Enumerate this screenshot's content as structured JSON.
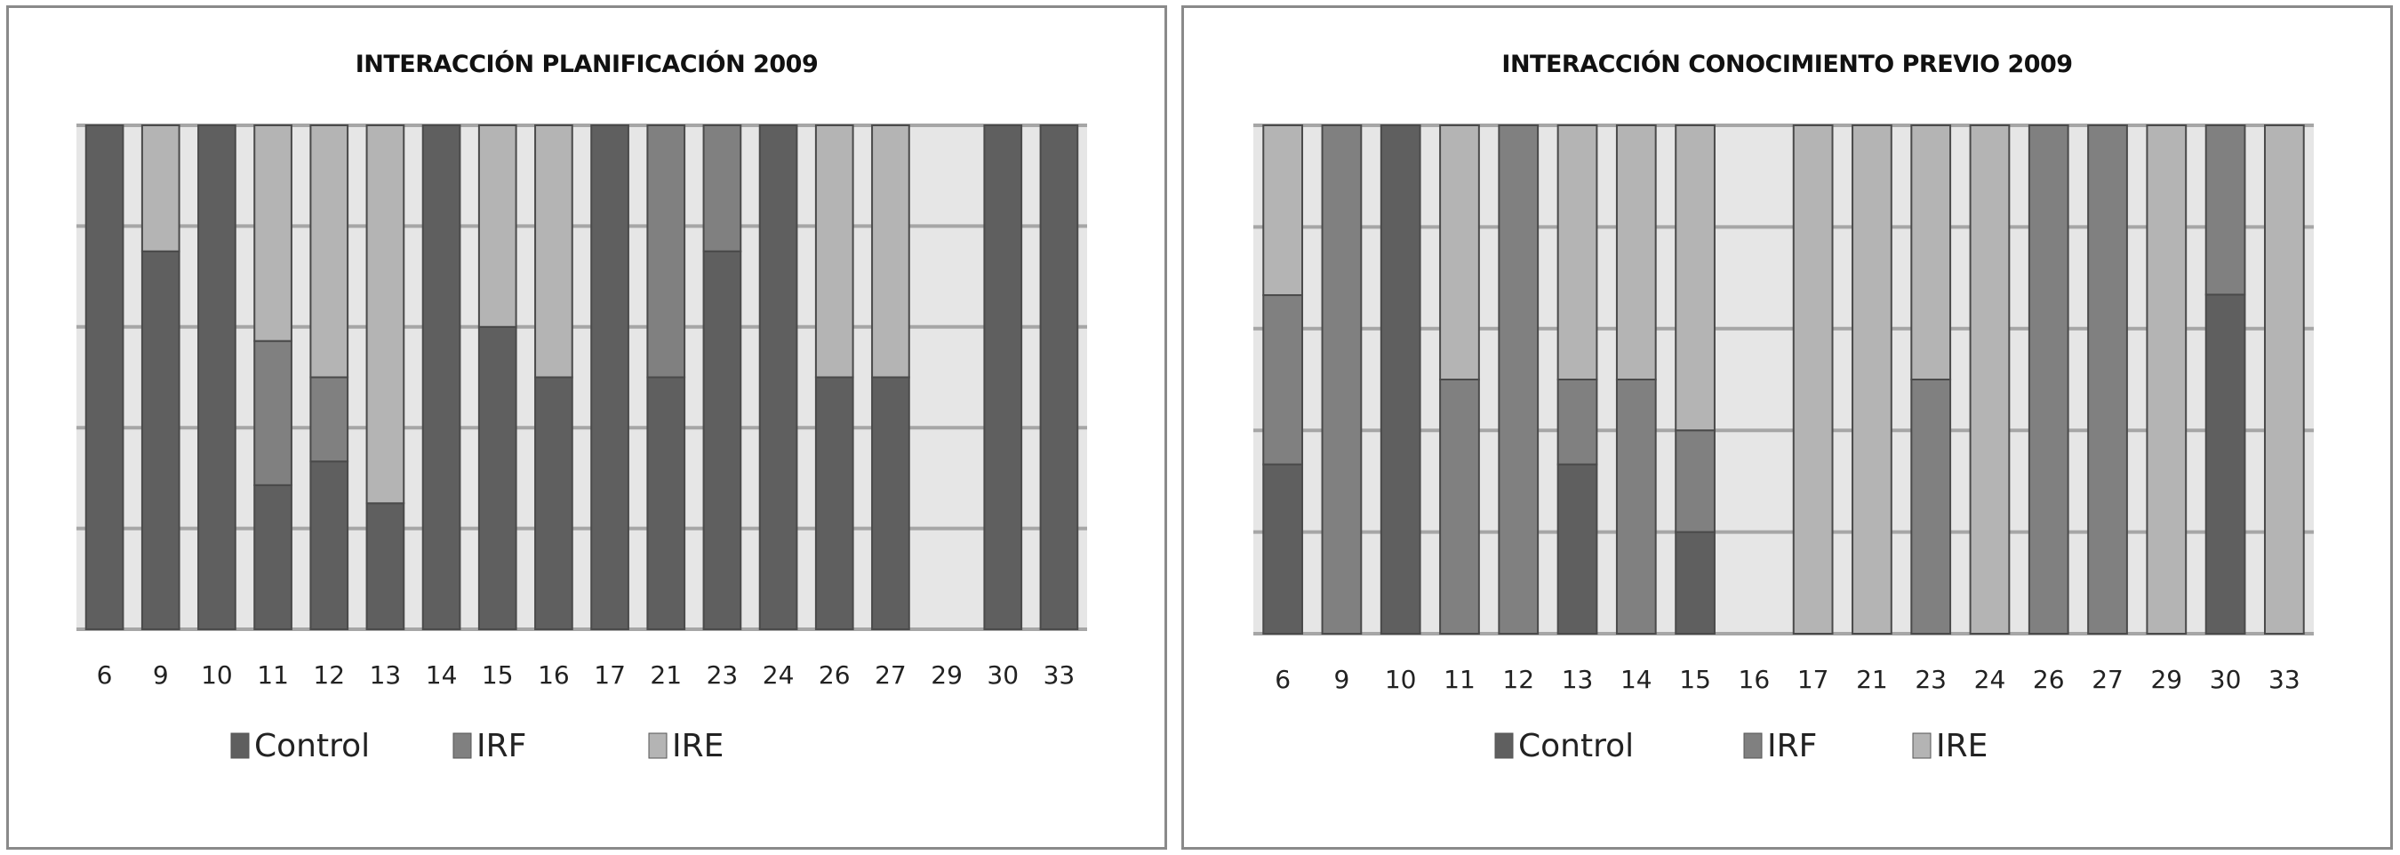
{
  "chart_data": [
    {
      "type": "bar",
      "stacked": "percent",
      "title": "INTERACCIÓN PLANIFICACIÓN 2009",
      "xlabel": "",
      "ylabel": "",
      "ylim": [
        0,
        1
      ],
      "grid": true,
      "legend_position": "bottom",
      "categories": [
        "6",
        "9",
        "10",
        "11",
        "12",
        "13",
        "14",
        "15",
        "16",
        "17",
        "21",
        "23",
        "24",
        "26",
        "27",
        "29",
        "30",
        "33"
      ],
      "series": [
        {
          "name": "Control",
          "color": "#5f5f5f",
          "values": [
            1,
            0.75,
            1,
            0.286,
            0.333,
            0.25,
            1,
            0.6,
            0.5,
            1,
            0.5,
            0.75,
            1,
            0.5,
            0.5,
            0,
            1,
            1
          ]
        },
        {
          "name": "IRF",
          "color": "#808080",
          "values": [
            0,
            0,
            0,
            0.286,
            0.167,
            0,
            0,
            0,
            0,
            0,
            0.5,
            0.25,
            0,
            0,
            0,
            0,
            0,
            0
          ]
        },
        {
          "name": "IRE",
          "color": "#b4b4b4",
          "values": [
            0,
            0.25,
            0,
            0.428,
            0.5,
            0.75,
            0,
            0.4,
            0.5,
            0,
            0,
            0,
            0,
            0.5,
            0.5,
            0,
            0,
            0
          ]
        }
      ]
    },
    {
      "type": "bar",
      "stacked": "percent",
      "title": "INTERACCIÓN CONOCIMIENTO PREVIO 2009",
      "xlabel": "",
      "ylabel": "",
      "ylim": [
        0,
        1
      ],
      "grid": true,
      "legend_position": "bottom",
      "categories": [
        "6",
        "9",
        "10",
        "11",
        "12",
        "13",
        "14",
        "15",
        "16",
        "17",
        "21",
        "23",
        "24",
        "26",
        "27",
        "29",
        "30",
        "33"
      ],
      "series": [
        {
          "name": "Control",
          "color": "#5f5f5f",
          "values": [
            0.333,
            0,
            1,
            0,
            0,
            0.333,
            0,
            0.2,
            0,
            0,
            0,
            0,
            0,
            0,
            0,
            0,
            0.667,
            0
          ]
        },
        {
          "name": "IRF",
          "color": "#808080",
          "values": [
            0.333,
            1,
            0,
            0.5,
            1,
            0.167,
            0.5,
            0.2,
            0,
            0,
            0,
            0.5,
            0,
            1,
            1,
            0,
            0.333,
            0
          ]
        },
        {
          "name": "IRE",
          "color": "#b4b4b4",
          "values": [
            0.334,
            0,
            0,
            0.5,
            0,
            0.5,
            0.5,
            0.6,
            0,
            1,
            1,
            0.5,
            1,
            0,
            0,
            1,
            0,
            1
          ]
        }
      ]
    }
  ],
  "colors": {
    "plot_bg": "#e6e6e6",
    "grid": "#a6a6a6"
  }
}
